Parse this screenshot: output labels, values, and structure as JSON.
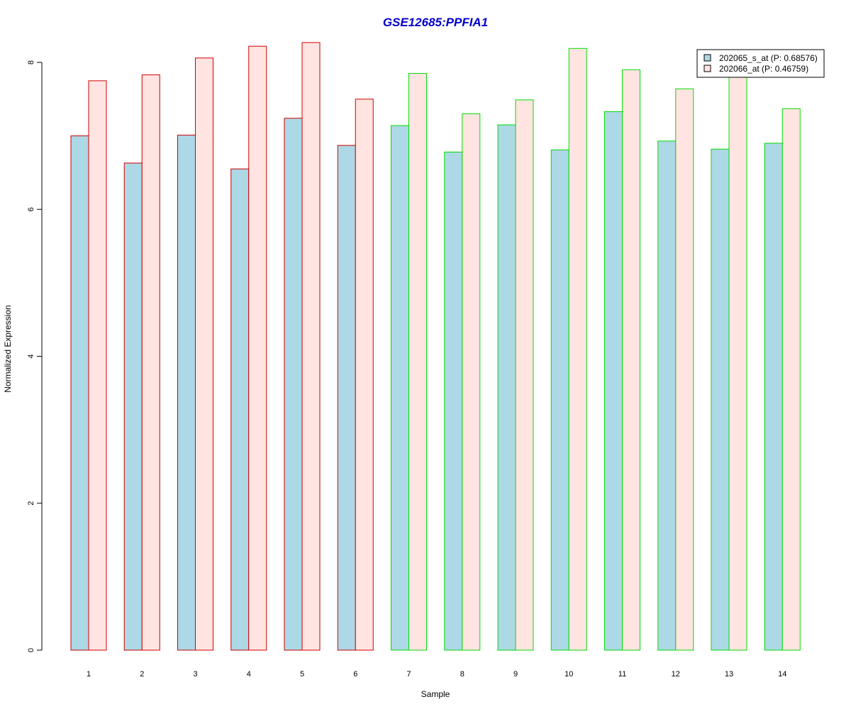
{
  "chart_data": {
    "type": "bar",
    "title": "GSE12685:PPFIA1",
    "xlabel": "Sample",
    "ylabel": "Normalized Expression",
    "ylim": [
      0,
      8
    ],
    "yticks": [
      "0",
      "2",
      "4",
      "6",
      "8"
    ],
    "categories": [
      "1",
      "2",
      "3",
      "4",
      "5",
      "6",
      "7",
      "8",
      "9",
      "10",
      "11",
      "12",
      "13",
      "14"
    ],
    "group_border_colors": [
      "#cc0000",
      "#cc0000",
      "#cc0000",
      "#cc0000",
      "#cc0000",
      "#cc0000",
      "#00dd00",
      "#00dd00",
      "#00dd00",
      "#00dd00",
      "#00dd00",
      "#00dd00",
      "#00dd00",
      "#00dd00"
    ],
    "series": [
      {
        "name": "202065_s_at (P: 0.68576)",
        "color": "#add8e6",
        "values": [
          7.0,
          6.63,
          7.01,
          6.55,
          7.24,
          6.87,
          7.14,
          6.78,
          7.15,
          6.81,
          7.33,
          6.93,
          6.82,
          6.9
        ]
      },
      {
        "name": "202066_at (P: 0.46759)",
        "color": "#ffe4e1",
        "values": [
          7.75,
          7.83,
          8.06,
          8.22,
          8.27,
          7.5,
          7.85,
          7.3,
          7.49,
          8.19,
          7.9,
          7.64,
          7.86,
          7.37
        ]
      }
    ],
    "legend_position": "top-right",
    "grid": false,
    "title_color": "#0000cc"
  }
}
